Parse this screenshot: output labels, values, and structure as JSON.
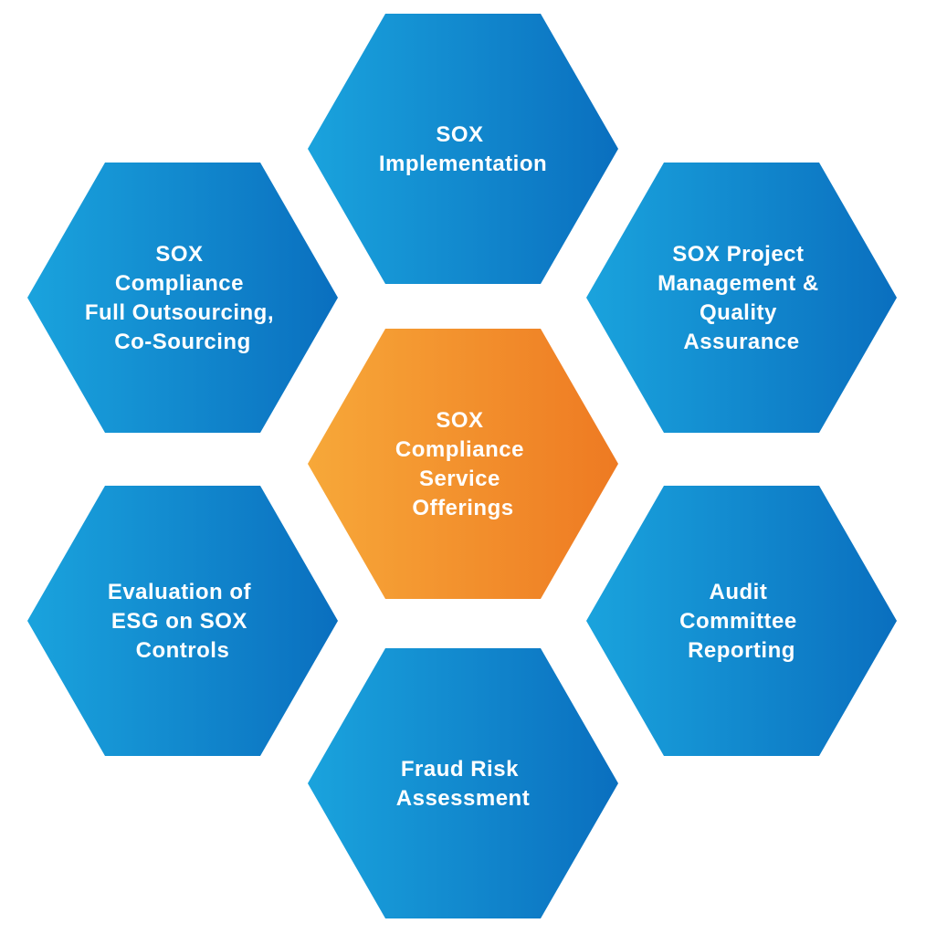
{
  "colors": {
    "blue_light": "#1aa3dd",
    "blue_dark": "#0a6fbf",
    "orange_light": "#f7a839",
    "orange_dark": "#ee7a22",
    "text": "#ffffff",
    "background": "#ffffff"
  },
  "center": {
    "lines": [
      "SOX",
      "Compliance",
      "Service",
      "Offerings"
    ]
  },
  "hexagons": [
    {
      "id": "sox-implementation",
      "lines": [
        "SOX",
        "Implementation"
      ]
    },
    {
      "id": "sox-project-management",
      "lines": [
        "SOX Project",
        "Management &",
        "Quality",
        "Assurance"
      ]
    },
    {
      "id": "audit-committee-reporting",
      "lines": [
        "Audit",
        "Committee",
        "Reporting"
      ]
    },
    {
      "id": "fraud-risk-assessment",
      "lines": [
        "Fraud Risk",
        "Assessment"
      ]
    },
    {
      "id": "evaluation-esg",
      "lines": [
        "Evaluation of",
        "ESG on SOX",
        "Controls"
      ]
    },
    {
      "id": "sox-compliance-outsourcing",
      "lines": [
        "SOX",
        "Compliance",
        "Full Outsourcing,",
        "Co-Sourcing"
      ]
    }
  ]
}
